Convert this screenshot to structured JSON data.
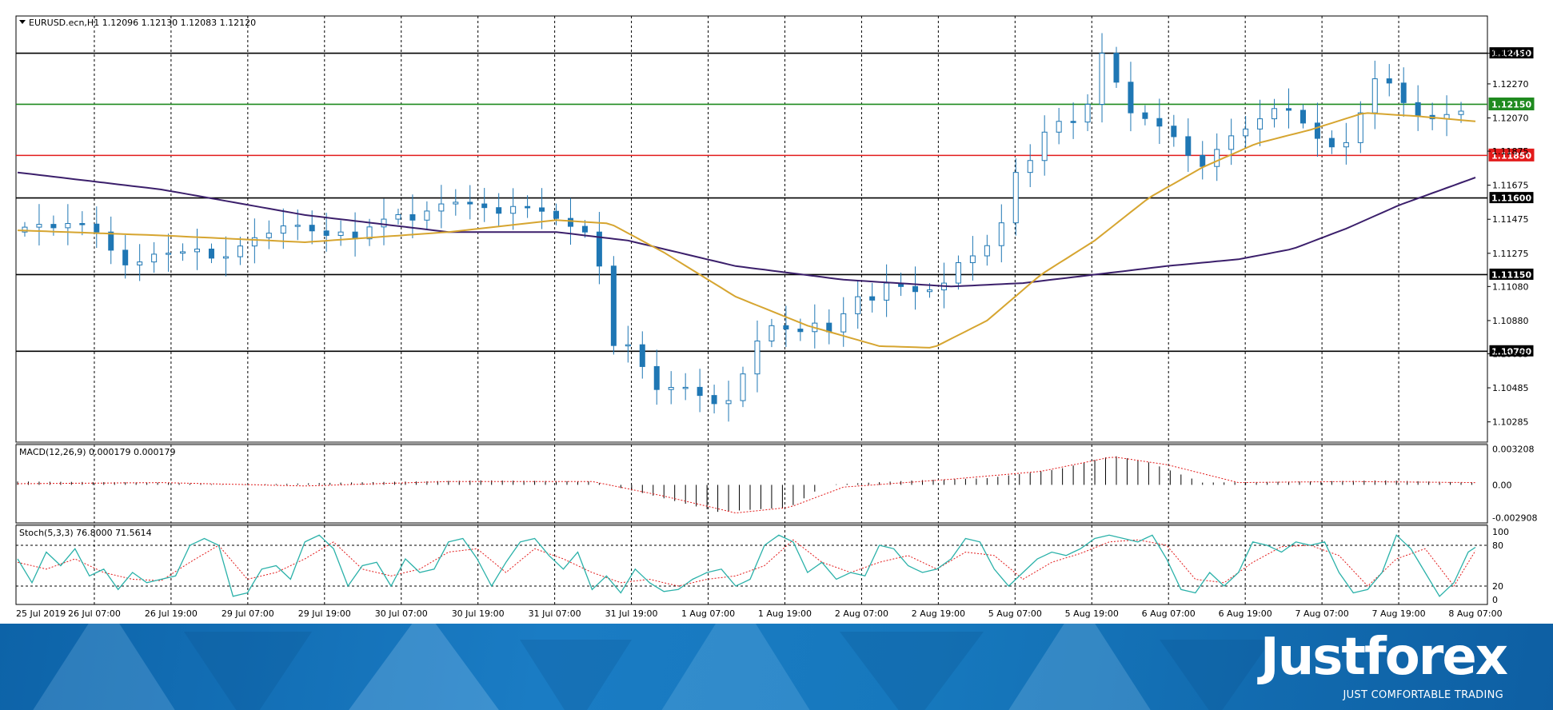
{
  "chart_data": [
    {
      "type": "candlestick",
      "title": "EURUSD.ecn,H1  1.12096 1.12130 1.12083 1.12120",
      "y_ticks": [
        "1.12450",
        "1.12270",
        "1.12070",
        "1.11875",
        "1.11675",
        "1.11475",
        "1.11275",
        "1.11080",
        "1.10880",
        "1.10685",
        "1.10485",
        "1.10285"
      ],
      "x_ticks": [
        "25 Jul 2019",
        "26 Jul 07:00",
        "26 Jul 19:00",
        "29 Jul 07:00",
        "29 Jul 19:00",
        "30 Jul 07:00",
        "30 Jul 19:00",
        "31 Jul 07:00",
        "31 Jul 19:00",
        "1 Aug 07:00",
        "1 Aug 19:00",
        "2 Aug 07:00",
        "2 Aug 19:00",
        "5 Aug 07:00",
        "5 Aug 19:00",
        "6 Aug 07:00",
        "6 Aug 19:00",
        "7 Aug 07:00",
        "7 Aug 19:00",
        "8 Aug 07:00"
      ],
      "ylim": [
        1.1018,
        1.1265
      ],
      "grid": true,
      "horizontal_levels": [
        {
          "value": 1.1245,
          "label": "1.12450",
          "color": "#000000"
        },
        {
          "value": 1.1215,
          "label": "1.12150",
          "color": "#1f8a1f"
        },
        {
          "value": 1.1185,
          "label": "1.11850",
          "color": "#e31b1b"
        },
        {
          "value": 1.116,
          "label": "1.11600",
          "color": "#000000"
        },
        {
          "value": 1.1115,
          "label": "1.11150",
          "color": "#000000"
        },
        {
          "value": 1.107,
          "label": "1.10700",
          "color": "#000000"
        }
      ],
      "candle_color": "#1f77b4",
      "ma_fast_color": "#d6a530",
      "ma_slow_color": "#3b1f6b",
      "close_path": [
        [
          0,
          1.114
        ],
        [
          7,
          1.1145
        ],
        [
          13,
          1.1142
        ],
        [
          18,
          1.1147
        ],
        [
          24,
          1.114
        ],
        [
          30,
          1.1124
        ],
        [
          33,
          1.1119
        ],
        [
          40,
          1.1127
        ],
        [
          47,
          1.1128
        ],
        [
          52,
          1.113
        ],
        [
          58,
          1.1122
        ],
        [
          62,
          1.1129
        ],
        [
          67,
          1.1136
        ],
        [
          73,
          1.114
        ],
        [
          78,
          1.1146
        ],
        [
          82,
          1.1142
        ],
        [
          88,
          1.1138
        ],
        [
          92,
          1.114
        ],
        [
          96,
          1.1136
        ],
        [
          100,
          1.1143
        ],
        [
          107,
          1.1151
        ],
        [
          112,
          1.1147
        ],
        [
          118,
          1.1155
        ],
        [
          122,
          1.1158
        ],
        [
          130,
          1.1156
        ],
        [
          136,
          1.1151
        ],
        [
          140,
          1.1155
        ],
        [
          145,
          1.1154
        ],
        [
          150,
          1.1151
        ],
        [
          154,
          1.1145
        ],
        [
          160,
          1.114
        ],
        [
          164,
          1.112
        ],
        [
          166,
          1.107
        ],
        [
          169,
          1.1075
        ],
        [
          174,
          1.1073
        ],
        [
          177,
          1.1055
        ],
        [
          181,
          1.1045
        ],
        [
          185,
          1.105
        ],
        [
          190,
          1.1048
        ],
        [
          194,
          1.104
        ],
        [
          199,
          1.1038
        ],
        [
          203,
          1.105
        ],
        [
          206,
          1.107
        ],
        [
          210,
          1.1082
        ],
        [
          214,
          1.1088
        ],
        [
          218,
          1.1078
        ],
        [
          222,
          1.1085
        ],
        [
          226,
          1.1088
        ],
        [
          229,
          1.1078
        ],
        [
          232,
          1.1092
        ],
        [
          236,
          1.1102
        ],
        [
          240,
          1.11
        ],
        [
          244,
          1.111
        ],
        [
          248,
          1.1108
        ],
        [
          252,
          1.1105
        ],
        [
          256,
          1.1106
        ],
        [
          260,
          1.111
        ],
        [
          264,
          1.1122
        ],
        [
          270,
          1.1128
        ],
        [
          275,
          1.1138
        ],
        [
          280,
          1.1175
        ],
        [
          284,
          1.1182
        ],
        [
          290,
          1.1207
        ],
        [
          295,
          1.1202
        ],
        [
          300,
          1.1215
        ],
        [
          304,
          1.1245
        ],
        [
          308,
          1.1228
        ],
        [
          312,
          1.121
        ],
        [
          318,
          1.1205
        ],
        [
          323,
          1.1198
        ],
        [
          327,
          1.119
        ],
        [
          330,
          1.1175
        ],
        [
          334,
          1.1182
        ],
        [
          338,
          1.1195
        ],
        [
          342,
          1.1198
        ],
        [
          346,
          1.1203
        ],
        [
          350,
          1.121
        ],
        [
          354,
          1.1215
        ],
        [
          358,
          1.1208
        ],
        [
          362,
          1.12
        ],
        [
          366,
          1.119
        ],
        [
          370,
          1.119
        ],
        [
          374,
          1.1195
        ],
        [
          378,
          1.1225
        ],
        [
          382,
          1.1235
        ],
        [
          386,
          1.122
        ],
        [
          390,
          1.1212
        ],
        [
          394,
          1.1205
        ],
        [
          398,
          1.1208
        ],
        [
          402,
          1.121
        ],
        [
          406,
          1.1212
        ]
      ],
      "ma_fast": [
        [
          0,
          1.1141
        ],
        [
          40,
          1.1138
        ],
        [
          80,
          1.1134
        ],
        [
          120,
          1.114
        ],
        [
          150,
          1.1147
        ],
        [
          165,
          1.1145
        ],
        [
          180,
          1.1128
        ],
        [
          200,
          1.1102
        ],
        [
          220,
          1.1085
        ],
        [
          240,
          1.1073
        ],
        [
          255,
          1.1072
        ],
        [
          270,
          1.1088
        ],
        [
          285,
          1.1115
        ],
        [
          300,
          1.1135
        ],
        [
          315,
          1.116
        ],
        [
          330,
          1.1178
        ],
        [
          345,
          1.1192
        ],
        [
          360,
          1.12
        ],
        [
          375,
          1.121
        ],
        [
          390,
          1.1208
        ],
        [
          406,
          1.1205
        ]
      ],
      "ma_slow": [
        [
          0,
          1.1175
        ],
        [
          40,
          1.1165
        ],
        [
          80,
          1.115
        ],
        [
          120,
          1.114
        ],
        [
          150,
          1.114
        ],
        [
          170,
          1.1135
        ],
        [
          200,
          1.112
        ],
        [
          230,
          1.1112
        ],
        [
          260,
          1.1108
        ],
        [
          280,
          1.111
        ],
        [
          300,
          1.1115
        ],
        [
          320,
          1.112
        ],
        [
          340,
          1.1124
        ],
        [
          355,
          1.113
        ],
        [
          370,
          1.1142
        ],
        [
          385,
          1.1156
        ],
        [
          406,
          1.1172
        ]
      ]
    },
    {
      "type": "bar",
      "title": "MACD(12,26,9) 0.000179 0.000179",
      "y_ticks": [
        "0.003208",
        "0.00",
        "-0.002908"
      ],
      "ylim": [
        -0.0031,
        0.0033
      ],
      "histogram_color": "#000000",
      "signal_color": "#e31b1b",
      "histogram": [
        [
          0,
          0.0003
        ],
        [
          40,
          0.0002
        ],
        [
          60,
          0.0
        ],
        [
          90,
          0.0002
        ],
        [
          130,
          0.0004
        ],
        [
          160,
          0.0003
        ],
        [
          175,
          -0.0008
        ],
        [
          195,
          -0.0024
        ],
        [
          215,
          -0.002
        ],
        [
          225,
          0.0
        ],
        [
          250,
          0.0004
        ],
        [
          270,
          0.0006
        ],
        [
          290,
          0.0014
        ],
        [
          305,
          0.0026
        ],
        [
          315,
          0.002
        ],
        [
          330,
          0.0002
        ],
        [
          360,
          0.0003
        ],
        [
          380,
          0.0004
        ],
        [
          406,
          0.0002
        ]
      ],
      "signal": [
        [
          0,
          0.0001
        ],
        [
          40,
          0.0002
        ],
        [
          80,
          -0.0001
        ],
        [
          120,
          0.0003
        ],
        [
          160,
          0.0003
        ],
        [
          180,
          -0.001
        ],
        [
          200,
          -0.0025
        ],
        [
          215,
          -0.002
        ],
        [
          230,
          -0.0002
        ],
        [
          260,
          0.0005
        ],
        [
          285,
          0.0012
        ],
        [
          305,
          0.0025
        ],
        [
          320,
          0.0018
        ],
        [
          340,
          0.0002
        ],
        [
          370,
          0.0003
        ],
        [
          406,
          0.0002
        ]
      ]
    },
    {
      "type": "line",
      "title": "Stoch(5,3,3) 76.8000 71.5614",
      "y_ticks": [
        "100",
        "80",
        "20",
        "0"
      ],
      "ylim": [
        0,
        100
      ],
      "main_color": "#2ab1a9",
      "signal_color": "#e31b1b",
      "main": [
        [
          0,
          60
        ],
        [
          4,
          25
        ],
        [
          8,
          70
        ],
        [
          12,
          50
        ],
        [
          16,
          75
        ],
        [
          20,
          35
        ],
        [
          24,
          45
        ],
        [
          28,
          15
        ],
        [
          32,
          40
        ],
        [
          36,
          25
        ],
        [
          40,
          30
        ],
        [
          44,
          35
        ],
        [
          48,
          80
        ],
        [
          52,
          90
        ],
        [
          56,
          80
        ],
        [
          60,
          5
        ],
        [
          64,
          10
        ],
        [
          68,
          45
        ],
        [
          72,
          50
        ],
        [
          76,
          30
        ],
        [
          80,
          85
        ],
        [
          84,
          95
        ],
        [
          88,
          75
        ],
        [
          92,
          20
        ],
        [
          96,
          50
        ],
        [
          100,
          55
        ],
        [
          104,
          20
        ],
        [
          108,
          60
        ],
        [
          112,
          40
        ],
        [
          116,
          45
        ],
        [
          120,
          85
        ],
        [
          124,
          90
        ],
        [
          128,
          60
        ],
        [
          132,
          20
        ],
        [
          136,
          55
        ],
        [
          140,
          85
        ],
        [
          144,
          90
        ],
        [
          148,
          65
        ],
        [
          152,
          45
        ],
        [
          156,
          70
        ],
        [
          160,
          15
        ],
        [
          164,
          35
        ],
        [
          168,
          10
        ],
        [
          172,
          45
        ],
        [
          176,
          25
        ],
        [
          180,
          12
        ],
        [
          184,
          15
        ],
        [
          188,
          30
        ],
        [
          192,
          40
        ],
        [
          196,
          45
        ],
        [
          200,
          20
        ],
        [
          204,
          30
        ],
        [
          208,
          80
        ],
        [
          212,
          95
        ],
        [
          216,
          85
        ],
        [
          220,
          40
        ],
        [
          224,
          55
        ],
        [
          228,
          30
        ],
        [
          232,
          40
        ],
        [
          236,
          35
        ],
        [
          240,
          80
        ],
        [
          244,
          75
        ],
        [
          248,
          50
        ],
        [
          252,
          40
        ],
        [
          256,
          45
        ],
        [
          260,
          60
        ],
        [
          264,
          90
        ],
        [
          268,
          85
        ],
        [
          272,
          45
        ],
        [
          276,
          20
        ],
        [
          280,
          40
        ],
        [
          284,
          60
        ],
        [
          288,
          70
        ],
        [
          292,
          65
        ],
        [
          296,
          75
        ],
        [
          300,
          90
        ],
        [
          304,
          95
        ],
        [
          308,
          90
        ],
        [
          312,
          85
        ],
        [
          316,
          95
        ],
        [
          320,
          60
        ],
        [
          324,
          15
        ],
        [
          328,
          10
        ],
        [
          332,
          40
        ],
        [
          336,
          20
        ],
        [
          340,
          40
        ],
        [
          344,
          85
        ],
        [
          348,
          80
        ],
        [
          352,
          70
        ],
        [
          356,
          85
        ],
        [
          360,
          80
        ],
        [
          364,
          85
        ],
        [
          368,
          40
        ],
        [
          372,
          10
        ],
        [
          376,
          15
        ],
        [
          380,
          40
        ],
        [
          384,
          95
        ],
        [
          388,
          75
        ],
        [
          392,
          40
        ],
        [
          396,
          5
        ],
        [
          400,
          25
        ],
        [
          404,
          70
        ],
        [
          406,
          77
        ]
      ],
      "signal": [
        [
          0,
          55
        ],
        [
          8,
          45
        ],
        [
          16,
          60
        ],
        [
          24,
          40
        ],
        [
          32,
          30
        ],
        [
          40,
          28
        ],
        [
          48,
          55
        ],
        [
          56,
          80
        ],
        [
          64,
          30
        ],
        [
          72,
          40
        ],
        [
          80,
          60
        ],
        [
          88,
          85
        ],
        [
          96,
          45
        ],
        [
          104,
          35
        ],
        [
          112,
          45
        ],
        [
          120,
          70
        ],
        [
          128,
          75
        ],
        [
          136,
          40
        ],
        [
          144,
          75
        ],
        [
          152,
          60
        ],
        [
          160,
          40
        ],
        [
          168,
          25
        ],
        [
          176,
          30
        ],
        [
          184,
          20
        ],
        [
          192,
          30
        ],
        [
          200,
          35
        ],
        [
          208,
          50
        ],
        [
          216,
          88
        ],
        [
          224,
          55
        ],
        [
          232,
          40
        ],
        [
          240,
          55
        ],
        [
          248,
          65
        ],
        [
          256,
          45
        ],
        [
          264,
          70
        ],
        [
          272,
          65
        ],
        [
          280,
          30
        ],
        [
          288,
          55
        ],
        [
          296,
          68
        ],
        [
          304,
          85
        ],
        [
          312,
          88
        ],
        [
          320,
          80
        ],
        [
          328,
          30
        ],
        [
          336,
          25
        ],
        [
          344,
          55
        ],
        [
          352,
          78
        ],
        [
          360,
          80
        ],
        [
          368,
          65
        ],
        [
          376,
          20
        ],
        [
          384,
          60
        ],
        [
          392,
          75
        ],
        [
          400,
          20
        ],
        [
          406,
          72
        ]
      ]
    }
  ],
  "brand": {
    "logo": "Justforex",
    "tagline": "JUST COMFORTABLE TRADING"
  }
}
